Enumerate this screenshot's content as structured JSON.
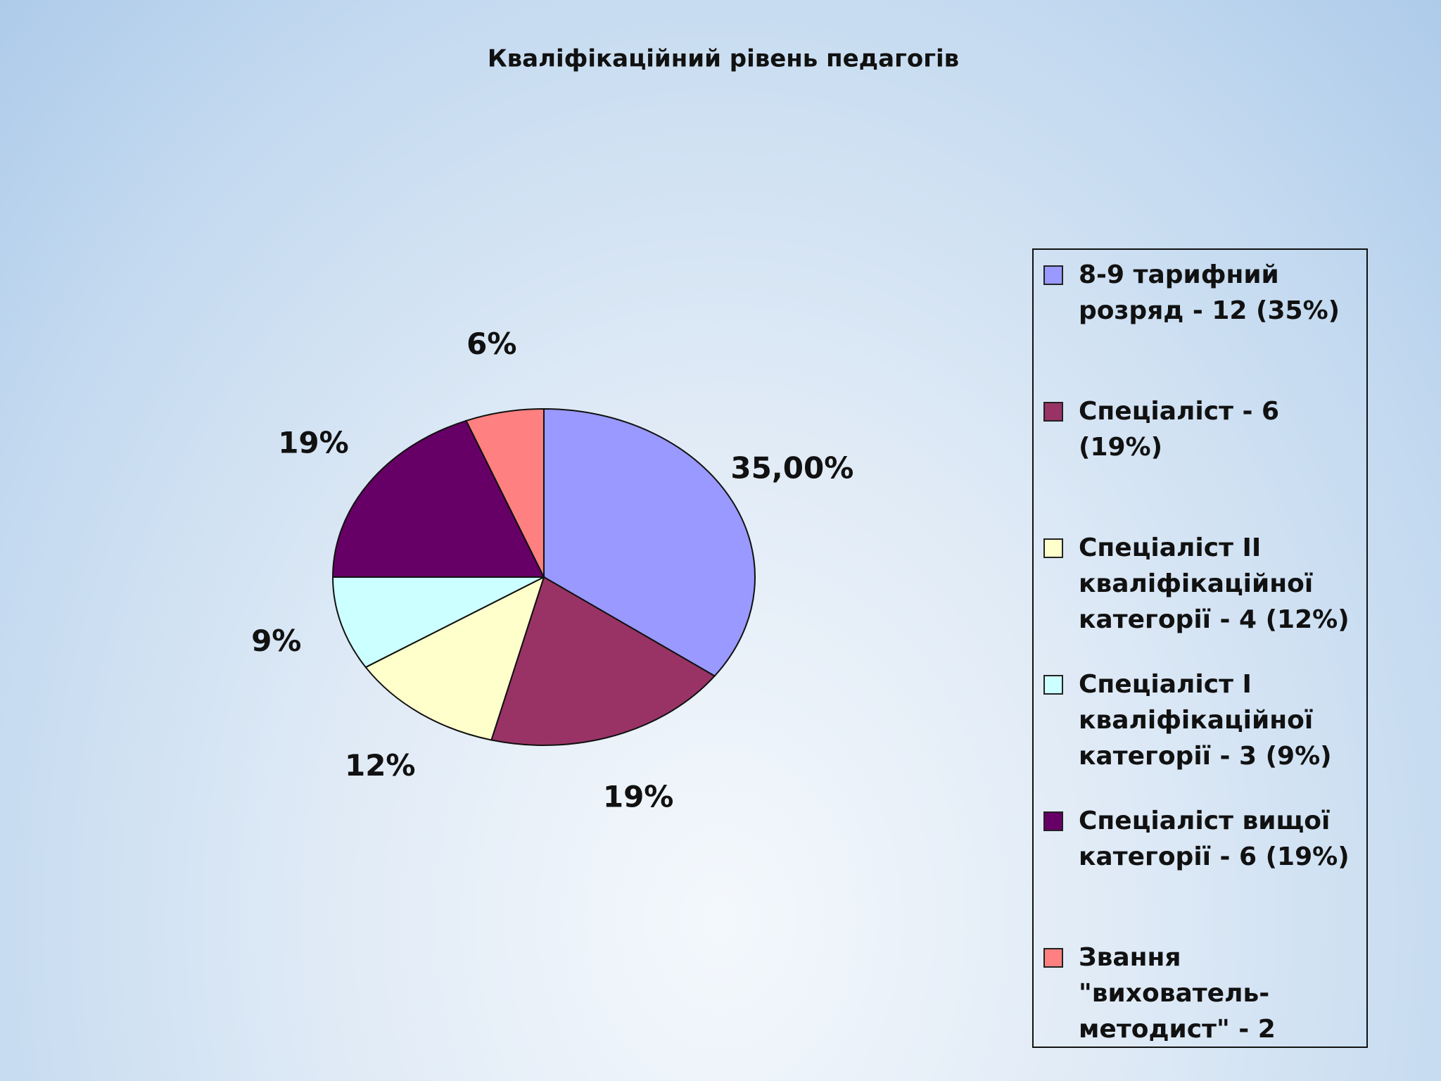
{
  "chart_data": {
    "type": "pie",
    "title": "Кваліфікаційний рівень педагогів",
    "categories": [
      "8-9 тарифний розряд - 12 (35%)",
      "Спеціаліст - 6 (19%)",
      "Спеціаліст ІІ кваліфікаційної категорії - 4 (12%)",
      "Спеціаліст І кваліфікаційної категорії - 3 (9%)",
      "Спеціаліст вищої категорії - 6 (19%)",
      "Звання \"вихователь-методист\" - 2"
    ],
    "values": [
      35,
      19,
      12,
      9,
      19,
      6
    ],
    "value_labels": [
      "35,00%",
      "19%",
      "12%",
      "9%",
      "19%",
      "6%"
    ],
    "colors": [
      "#9999ff",
      "#993366",
      "#ffffcc",
      "#ccffff",
      "#660066",
      "#ff8080"
    ],
    "legend": "right"
  }
}
